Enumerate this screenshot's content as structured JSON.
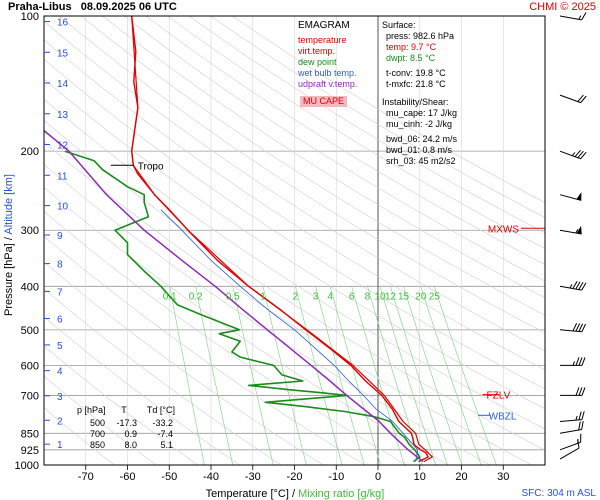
{
  "header": {
    "station": "Praha-Libus",
    "datetime": "08.09.2025 06 UTC",
    "credit": "CHMI © 2025"
  },
  "legend": {
    "title": "EMAGRAM",
    "items": [
      {
        "label": "temperature",
        "color": "#e00000"
      },
      {
        "label": "virt.temp.",
        "color": "#e00000"
      },
      {
        "label": "dew point",
        "color": "#1a8c1a"
      },
      {
        "label": "wet bulb temp.",
        "color": "#2a60d8"
      },
      {
        "label": "udpraft v.temp.",
        "color": "#8e2ab8"
      }
    ],
    "mucape_label": "MU CAPE",
    "mucape_bg": "#f4b8c0"
  },
  "surface": {
    "title": "Surface:",
    "press": "press: 982.6 hPa",
    "temp": "temp: 9.7 °C",
    "dwpt": "dwpt: 8.5 °C",
    "tconv": "t-conv: 19.8 °C",
    "tmxfc": "t-mxfc: 21.8 °C"
  },
  "instability": {
    "title": "Instability/Shear:",
    "mu_cape": "mu_cape: 17 J/kg",
    "mu_cinh": "mu_cinh: -2 J/kg",
    "bwd06": "bwd_06: 24.2 m/s",
    "bwd01": "bwd_01: 0.8 m/s",
    "srh03": "srh_03: 45 m2/s2"
  },
  "table": {
    "headers": [
      "p [hPa]",
      "T",
      "Td [°C]"
    ],
    "rows": [
      [
        "500",
        "-17.3",
        "-33.2"
      ],
      [
        "700",
        "0.9",
        "-7.4"
      ],
      [
        "850",
        "8.0",
        "5.1"
      ]
    ]
  },
  "labels": {
    "tropo": "Tropo",
    "mxws": "MXWS",
    "fzlv": "FZLV",
    "wbzl": "WBZL",
    "sfc": "SFC: 304 m ASL",
    "xlabel_temp": "Temperature [°C]",
    "xlabel_sep": "/",
    "xlabel_mix": "Mixing ratio [g/kg]",
    "ylabel_press": "Pressure [hPa]",
    "ylabel_sep": "/",
    "ylabel_alt": "Altitude [km]"
  },
  "chart_data": {
    "type": "line",
    "x_range": [
      -80,
      40
    ],
    "x_ticks": [
      -70,
      -60,
      -50,
      -40,
      -30,
      -20,
      -10,
      0,
      10,
      20,
      30
    ],
    "p_range": [
      100,
      1000
    ],
    "p_ticks": [
      100,
      200,
      300,
      400,
      500,
      600,
      700,
      850,
      925,
      1000
    ],
    "alt_ticks": [
      1,
      2,
      3,
      4,
      5,
      6,
      7,
      8,
      9,
      10,
      11,
      12,
      13,
      14,
      15,
      16
    ],
    "mixing_ratio_labels": [
      "0.1",
      "0.2",
      "0.5",
      "1",
      "2",
      "3",
      "4",
      "6",
      "8",
      "10",
      "12",
      "15",
      "20",
      "25"
    ],
    "mixing_ratio_values": [
      0.1,
      0.2,
      0.5,
      1,
      2,
      3,
      4,
      6,
      8,
      10,
      12,
      15,
      20,
      25
    ],
    "series": [
      {
        "name": "temperature",
        "color": "#e00000",
        "points": [
          [
            982.6,
            9.7
          ],
          [
            960,
            12
          ],
          [
            940,
            11.5
          ],
          [
            925,
            10.2
          ],
          [
            900,
            8.6
          ],
          [
            870,
            8.3
          ],
          [
            850,
            8.0
          ],
          [
            800,
            5
          ],
          [
            750,
            3.4
          ],
          [
            700,
            0.9
          ],
          [
            650,
            -3
          ],
          [
            600,
            -6.5
          ],
          [
            550,
            -11.5
          ],
          [
            500,
            -17.3
          ],
          [
            450,
            -23.5
          ],
          [
            400,
            -31
          ],
          [
            350,
            -38.5
          ],
          [
            300,
            -45.5
          ],
          [
            270,
            -50
          ],
          [
            250,
            -53.5
          ],
          [
            225,
            -57.5
          ],
          [
            215,
            -58.6
          ],
          [
            200,
            -59
          ],
          [
            180,
            -58.3
          ],
          [
            160,
            -57.5
          ],
          [
            140,
            -58.5
          ],
          [
            120,
            -58
          ],
          [
            100,
            -59
          ]
        ]
      },
      {
        "name": "virt.temp.",
        "color": "#e00000",
        "points": [
          [
            982.6,
            11
          ],
          [
            960,
            13
          ],
          [
            925,
            11.3
          ],
          [
            900,
            9.8
          ],
          [
            850,
            9.0
          ],
          [
            800,
            6
          ],
          [
            700,
            1.5
          ],
          [
            600,
            -6
          ],
          [
            500,
            -17
          ],
          [
            400,
            -31
          ],
          [
            300,
            -45.5
          ],
          [
            250,
            -53.5
          ],
          [
            215,
            -58.6
          ],
          [
            200,
            -59
          ],
          [
            160,
            -57.5
          ],
          [
            100,
            -59
          ]
        ]
      },
      {
        "name": "dew point",
        "color": "#1a8c1a",
        "points": [
          [
            982.6,
            8.5
          ],
          [
            960,
            10
          ],
          [
            925,
            8.8
          ],
          [
            900,
            7.5
          ],
          [
            870,
            6.5
          ],
          [
            850,
            5.1
          ],
          [
            800,
            3
          ],
          [
            780,
            -1
          ],
          [
            760,
            -8
          ],
          [
            740,
            -18
          ],
          [
            725,
            -27
          ],
          [
            700,
            -7.4
          ],
          [
            690,
            -14
          ],
          [
            680,
            -21
          ],
          [
            665,
            -31
          ],
          [
            650,
            -18
          ],
          [
            630,
            -23
          ],
          [
            600,
            -25
          ],
          [
            575,
            -33
          ],
          [
            560,
            -35
          ],
          [
            530,
            -33
          ],
          [
            510,
            -38
          ],
          [
            500,
            -33.2
          ],
          [
            480,
            -38
          ],
          [
            460,
            -43
          ],
          [
            440,
            -48
          ],
          [
            420,
            -50
          ],
          [
            400,
            -52
          ],
          [
            370,
            -56
          ],
          [
            340,
            -60
          ],
          [
            320,
            -60
          ],
          [
            300,
            -63
          ],
          [
            280,
            -55
          ],
          [
            260,
            -56
          ],
          [
            250,
            -56
          ],
          [
            240,
            -60
          ],
          [
            220,
            -66
          ],
          [
            210,
            -68
          ],
          [
            200,
            -75
          ]
        ]
      },
      {
        "name": "wet bulb temp.",
        "color": "#2a60d8",
        "points": [
          [
            982.6,
            9.0
          ],
          [
            925,
            9.5
          ],
          [
            850,
            6.0
          ],
          [
            800,
            3.5
          ],
          [
            750,
            -0.5
          ],
          [
            700,
            -3.5
          ],
          [
            650,
            -7
          ],
          [
            600,
            -10.5
          ],
          [
            550,
            -15
          ],
          [
            500,
            -20
          ],
          [
            450,
            -26.5
          ],
          [
            400,
            -33
          ],
          [
            350,
            -40
          ],
          [
            300,
            -47
          ],
          [
            270,
            -52
          ]
        ]
      },
      {
        "name": "udpraft v.temp.",
        "color": "#8e2ab8",
        "points": [
          [
            982.6,
            10.8
          ],
          [
            925,
            7.2
          ],
          [
            850,
            3.0
          ],
          [
            800,
            0.3
          ],
          [
            750,
            -3.5
          ],
          [
            700,
            -7.5
          ],
          [
            650,
            -11.5
          ],
          [
            600,
            -16
          ],
          [
            550,
            -21
          ],
          [
            500,
            -26.5
          ],
          [
            450,
            -32.5
          ],
          [
            400,
            -39
          ],
          [
            350,
            -47
          ],
          [
            300,
            -56
          ],
          [
            250,
            -65
          ],
          [
            200,
            -74
          ],
          [
            180,
            -80
          ]
        ]
      }
    ]
  },
  "wind_barbs": [
    {
      "p": 970,
      "dir": 240,
      "speed_kt": 10
    },
    {
      "p": 925,
      "dir": 250,
      "speed_kt": 15
    },
    {
      "p": 850,
      "dir": 260,
      "speed_kt": 20
    },
    {
      "p": 800,
      "dir": 265,
      "speed_kt": 25
    },
    {
      "p": 700,
      "dir": 270,
      "speed_kt": 30
    },
    {
      "p": 600,
      "dir": 270,
      "speed_kt": 35
    },
    {
      "p": 500,
      "dir": 275,
      "speed_kt": 40
    },
    {
      "p": 400,
      "dir": 280,
      "speed_kt": 45
    },
    {
      "p": 300,
      "dir": 280,
      "speed_kt": 55
    },
    {
      "p": 250,
      "dir": 285,
      "speed_kt": 50
    },
    {
      "p": 200,
      "dir": 290,
      "speed_kt": 35
    },
    {
      "p": 150,
      "dir": 290,
      "speed_kt": 20
    },
    {
      "p": 100,
      "dir": 280,
      "speed_kt": 15
    }
  ]
}
